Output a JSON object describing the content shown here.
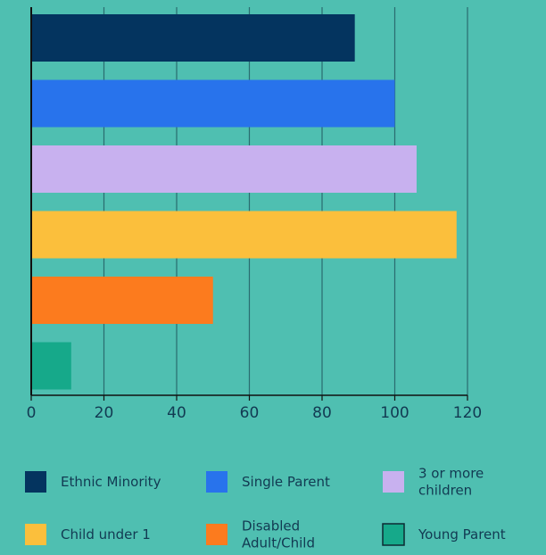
{
  "chart_data": {
    "type": "bar",
    "orientation": "horizontal",
    "categories": [
      "Ethnic Minority",
      "Single Parent",
      "3 or more children",
      "Child under 1",
      "Disabled Adult/Child",
      "Young Parent"
    ],
    "values": [
      89,
      100,
      106,
      117,
      50,
      11
    ],
    "colors": [
      "#04345f",
      "#2873ec",
      "#c8b1ef",
      "#fbbf3c",
      "#fc7b1e",
      "#16a98a"
    ],
    "xlim": [
      0,
      120
    ],
    "xticks": [
      0,
      20,
      40,
      60,
      80,
      100,
      120
    ],
    "grid": true,
    "legend": {
      "placement": "bottom",
      "entries": [
        {
          "label": [
            "Ethnic Minority"
          ],
          "color": "#04345f"
        },
        {
          "label": [
            "Single Parent"
          ],
          "color": "#2873ec"
        },
        {
          "label": [
            "3 or more",
            "children"
          ],
          "color": "#c8b1ef"
        },
        {
          "label": [
            "Child under 1"
          ],
          "color": "#fbbf3c"
        },
        {
          "label": [
            "Disabled",
            "Adult/Child"
          ],
          "color": "#fc7b1e"
        },
        {
          "label": [
            "Young Parent"
          ],
          "color": "#16a98a"
        }
      ]
    },
    "title": "",
    "xlabel": "",
    "ylabel": ""
  },
  "style": {
    "background": "#4fbfb1",
    "grid_color": "#2a6c6f",
    "axis_color": "#111111",
    "text_color": "#123a52"
  }
}
